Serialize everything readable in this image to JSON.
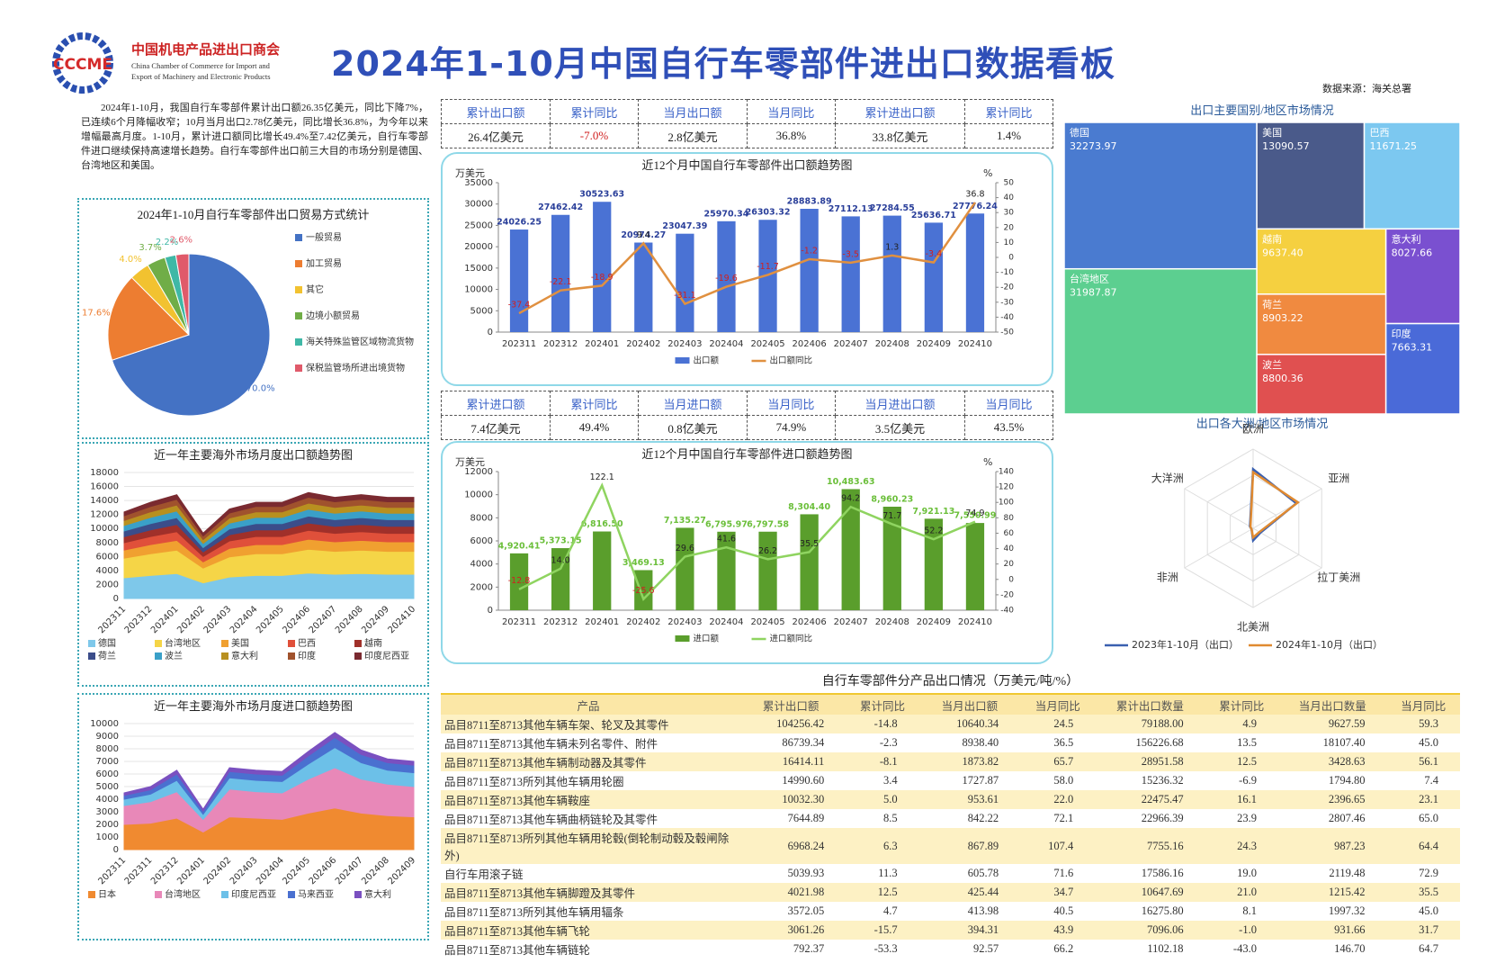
{
  "header": {
    "logo": "CCCME",
    "org_cn": "中国机电产品进出口商会",
    "org_en_1": "China Chamber of Commerce for Import and",
    "org_en_2": "Export of Machinery and Electronic Products",
    "title": "2024年1-10月中国自行车零部件进出口数据看板",
    "source": "数据来源：海关总署"
  },
  "summary": "2024年1-10月，我国自行车零部件累计出口额26.35亿美元，同比下降7%，已连续6个月降幅收窄；10月当月出口2.78亿美元，同比增长36.8%，为今年以来增幅最高月度。1-10月，累计进口额同比增长49.4%至7.42亿美元，自行车零部件进口继续保持高速增长趋势。自行车零部件出口前三大目的市场分别是德国、台湾地区和美国。",
  "kpis": [
    {
      "headers": [
        "累计出口额",
        "累计同比",
        "当月出口额",
        "当月同比",
        "累计进出口额",
        "累计同比"
      ],
      "values": [
        "26.4亿美元",
        "-7.0%",
        "2.8亿美元",
        "36.8%",
        "33.8亿美元",
        "1.4%"
      ]
    },
    {
      "headers": [
        "累计进口额",
        "累计同比",
        "当月进口额",
        "当月同比",
        "当月进出口额",
        "当月同比"
      ],
      "values": [
        "7.4亿美元",
        "49.4%",
        "0.8亿美元",
        "74.9%",
        "3.5亿美元",
        "43.5%"
      ]
    }
  ],
  "chart_data": [
    {
      "type": "pie",
      "title": "2024年1-10月自行车零部件出口贸易方式统计",
      "categories": [
        "一般贸易",
        "加工贸易",
        "其它",
        "边境小额贸易",
        "海关特殊监管区域物流货物",
        "保税监管场所进出境货物"
      ],
      "values": [
        70.0,
        17.6,
        4.0,
        3.7,
        2.2,
        2.6
      ],
      "value_labels": [
        "70.0%",
        "17.6%",
        "4.0%",
        "3.7%",
        "2.2%",
        "2.6%"
      ],
      "colors": [
        "#4472c4",
        "#ed7d31",
        "#f2c230",
        "#70ad47",
        "#3fb8a6",
        "#e05a6a"
      ]
    },
    {
      "type": "area",
      "stacked": true,
      "title": "近一年主要海外市场月度出口额趋势图",
      "categories": [
        "202311",
        "202312",
        "202401",
        "202402",
        "202403",
        "202404",
        "202405",
        "202406",
        "202407",
        "202408",
        "202409",
        "202410"
      ],
      "ylim": [
        0,
        18000
      ],
      "yticks": [
        0,
        2000,
        4000,
        6000,
        8000,
        10000,
        12000,
        14000,
        16000,
        18000
      ],
      "series": [
        {
          "name": "德国",
          "color": "#7ec8ea",
          "values": [
            2970,
            3300,
            3560,
            2240,
            3070,
            3300,
            3300,
            3630,
            3470,
            3560,
            3470,
            3470
          ]
        },
        {
          "name": "台湾地区",
          "color": "#f5d547",
          "values": [
            2790,
            3100,
            3350,
            2110,
            2880,
            3100,
            3100,
            3410,
            3260,
            3350,
            3260,
            3260
          ]
        },
        {
          "name": "美国",
          "color": "#f0a030",
          "values": [
            1170,
            1300,
            1400,
            880,
            1210,
            1300,
            1300,
            1430,
            1370,
            1400,
            1370,
            1370
          ]
        },
        {
          "name": "巴西",
          "color": "#e0503a",
          "values": [
            1040,
            1150,
            1240,
            780,
            1070,
            1150,
            1150,
            1270,
            1210,
            1240,
            1210,
            1210
          ]
        },
        {
          "name": "越南",
          "color": "#a0302a",
          "values": [
            860,
            950,
            1030,
            650,
            880,
            950,
            950,
            1050,
            1000,
            1030,
            1000,
            1000
          ]
        },
        {
          "name": "荷兰",
          "color": "#3b4d8a",
          "values": [
            810,
            900,
            970,
            610,
            840,
            900,
            900,
            990,
            950,
            970,
            950,
            950
          ]
        },
        {
          "name": "波兰",
          "color": "#3aa0c8",
          "values": [
            790,
            880,
            950,
            600,
            820,
            880,
            880,
            970,
            920,
            950,
            920,
            920
          ]
        },
        {
          "name": "意大利",
          "color": "#b89020",
          "values": [
            720,
            800,
            860,
            540,
            740,
            800,
            800,
            880,
            840,
            860,
            840,
            840
          ]
        },
        {
          "name": "印度",
          "color": "#a0522d",
          "values": [
            680,
            760,
            820,
            520,
            710,
            760,
            760,
            840,
            800,
            820,
            800,
            800
          ]
        },
        {
          "name": "印度尼西亚",
          "color": "#7a2a30",
          "values": [
            540,
            600,
            650,
            410,
            560,
            600,
            600,
            660,
            630,
            650,
            630,
            630
          ]
        }
      ]
    },
    {
      "type": "area",
      "stacked": true,
      "title": "近一年主要海外市场月度进口额趋势图",
      "categories": [
        "202311",
        "202311",
        "202312",
        "202401",
        "202402",
        "202403",
        "202404",
        "202405",
        "202406",
        "202407",
        "202408",
        "202409"
      ],
      "ylim": [
        0,
        10000
      ],
      "yticks": [
        0,
        1000,
        2000,
        3000,
        4000,
        5000,
        6000,
        7000,
        8000,
        9000,
        10000
      ],
      "series": [
        {
          "name": "日本",
          "color": "#f08a30",
          "values": [
            2000,
            2100,
            2500,
            1400,
            2600,
            2500,
            2400,
            2900,
            3300,
            2900,
            2700,
            2600
          ]
        },
        {
          "name": "台湾地区",
          "color": "#e888b8",
          "values": [
            1500,
            1700,
            2100,
            1000,
            2200,
            2100,
            2100,
            2700,
            3200,
            2700,
            2500,
            2400
          ]
        },
        {
          "name": "印度尼西亚",
          "color": "#6cc0e8",
          "values": [
            500,
            600,
            900,
            400,
            900,
            900,
            900,
            1200,
            1600,
            1300,
            1100,
            1100
          ]
        },
        {
          "name": "马来西亚",
          "color": "#4a70d0",
          "values": [
            300,
            350,
            500,
            250,
            500,
            500,
            500,
            650,
            800,
            650,
            600,
            600
          ]
        },
        {
          "name": "意大利",
          "color": "#7a50c0",
          "values": [
            200,
            250,
            300,
            150,
            300,
            300,
            300,
            350,
            400,
            350,
            300,
            300
          ]
        }
      ]
    },
    {
      "type": "combo",
      "title": "近12个月中国自行车零部件出口额趋势图",
      "ylabel": "万美元",
      "y2label": "%",
      "categories": [
        "202311",
        "202312",
        "202401",
        "202402",
        "202403",
        "202404",
        "202405",
        "202406",
        "202407",
        "202408",
        "202409",
        "202410"
      ],
      "ylim": [
        0,
        35000
      ],
      "yticks": [
        0,
        5000,
        10000,
        15000,
        20000,
        25000,
        30000,
        35000
      ],
      "y2lim": [
        -50,
        50
      ],
      "y2ticks": [
        -50,
        -40,
        -30,
        -20,
        -10,
        0,
        10,
        20,
        30,
        40,
        50
      ],
      "series": [
        {
          "name": "出口额",
          "type": "bar",
          "color": "#4a72d4",
          "values": [
            24026.25,
            27462.42,
            30523.63,
            20974.27,
            23047.39,
            25970.34,
            26303.32,
            28883.89,
            27112.13,
            27284.55,
            25636.71,
            27776.24
          ]
        },
        {
          "name": "出口额同比",
          "type": "line",
          "axis": "y2",
          "color": "#e09040",
          "values": [
            -37.4,
            -22.1,
            -18.9,
            9.4,
            -31.1,
            -19.6,
            -11.7,
            -1.2,
            -3.5,
            1.3,
            -3.4,
            36.8
          ]
        }
      ]
    },
    {
      "type": "combo",
      "title": "近12个月中国自行车零部件进口额趋势图",
      "ylabel": "万美元",
      "y2label": "%",
      "categories": [
        "202311",
        "202312",
        "202401",
        "202402",
        "202403",
        "202404",
        "202405",
        "202406",
        "202407",
        "202408",
        "202409",
        "202410"
      ],
      "ylim": [
        0,
        12000
      ],
      "yticks": [
        0,
        2000,
        4000,
        6000,
        8000,
        10000,
        12000
      ],
      "y2lim": [
        -40,
        140
      ],
      "y2ticks": [
        -40,
        -20,
        0,
        20,
        40,
        60,
        80,
        100,
        120,
        140
      ],
      "series": [
        {
          "name": "进口额",
          "type": "bar",
          "color": "#5a9e2c",
          "values": [
            4920.41,
            5373.15,
            6816.5,
            3469.13,
            7135.27,
            6795.97,
            6797.58,
            8304.4,
            10483.63,
            8960.23,
            7921.13,
            7550.99
          ],
          "value_labels": [
            "4,920.41",
            "5,373.15",
            "6,816.50",
            "3,469.13",
            "7,135.27",
            "6,795.97",
            "6,797.58",
            "8,304.40",
            "10,483.63",
            "8,960.23",
            "7,921.13",
            "7,550.99"
          ]
        },
        {
          "name": "进口额同比",
          "type": "line",
          "axis": "y2",
          "color": "#8fd460",
          "values": [
            -12.8,
            14.0,
            122.1,
            -25.6,
            29.6,
            41.6,
            26.2,
            35.5,
            94.2,
            71.7,
            52.2,
            74.9
          ],
          "value_labels": [
            "-12.8",
            "14.0",
            "122.1",
            "-25.6",
            "29.6",
            "41.6",
            "26.2",
            "35.5",
            "94.2",
            "71.7",
            "52.2",
            "74.9"
          ]
        }
      ]
    },
    {
      "type": "treemap",
      "title": "出口主要国别/地区市场情况",
      "categories": [
        "德国",
        "台湾地区",
        "美国",
        "巴西",
        "越南",
        "荷兰",
        "波兰",
        "意大利",
        "印度"
      ],
      "values": [
        32273.97,
        31987.87,
        13090.57,
        11671.25,
        9637.4,
        8903.22,
        8800.36,
        8027.66,
        7663.31
      ],
      "value_labels": [
        "32273.97",
        "31987.87",
        "13090.57",
        "11671.25",
        "9637.40",
        "8903.22",
        "8800.36",
        "8027.66",
        "7663.31"
      ],
      "colors": [
        "#4a7bd0",
        "#5ccf90",
        "#4a5a8a",
        "#7cc8f0",
        "#f5d040",
        "#f08a40",
        "#e05050",
        "#7a50d0",
        "#4a6ad8"
      ]
    },
    {
      "type": "radar",
      "title": "出口各大洲/地区市场情况",
      "categories": [
        "欧洲",
        "亚洲",
        "拉丁美洲",
        "北美洲",
        "非洲",
        "大洋洲"
      ],
      "rlim": [
        0,
        130000
      ],
      "series": [
        {
          "name": "2023年1-10月（出口）",
          "color": "#3a60b0",
          "values": [
            97000,
            82000,
            14000,
            20000,
            3000,
            6000
          ]
        },
        {
          "name": "2024年1-10月（出口）",
          "color": "#e08a30",
          "values": [
            92000,
            85000,
            12000,
            15000,
            3000,
            5000
          ]
        }
      ]
    }
  ],
  "table": {
    "title": "自行车零部件分产品出口情况（万美元/吨/%）",
    "columns": [
      "产品",
      "累计出口额",
      "累计同比",
      "当月出口额",
      "当月同比",
      "累计出口数量",
      "累计同比",
      "当月出口数量",
      "当月同比"
    ],
    "rows": [
      [
        "品目8711至8713其他车辆车架、轮叉及其零件",
        "104256.42",
        "-14.8",
        "10640.34",
        "24.5",
        "79188.00",
        "4.9",
        "9627.59",
        "59.3"
      ],
      [
        "品目8711至8713其他车辆未列名零件、附件",
        "86739.34",
        "-2.3",
        "8938.40",
        "36.5",
        "156226.68",
        "13.5",
        "18107.40",
        "45.0"
      ],
      [
        "品目8711至8713其他车辆制动器及其零件",
        "16414.11",
        "-8.1",
        "1873.82",
        "65.7",
        "28951.58",
        "12.5",
        "3428.63",
        "56.1"
      ],
      [
        "品目8711至8713所列其他车辆用轮圈",
        "14990.60",
        "3.4",
        "1727.87",
        "58.0",
        "15236.32",
        "-6.9",
        "1794.80",
        "7.4"
      ],
      [
        "品目8711至8713其他车辆鞍座",
        "10032.30",
        "5.0",
        "953.61",
        "22.0",
        "22475.47",
        "16.1",
        "2396.65",
        "23.1"
      ],
      [
        "品目8711至8713其他车辆曲柄链轮及其零件",
        "7644.89",
        "8.5",
        "842.22",
        "72.1",
        "22966.39",
        "23.9",
        "2807.46",
        "65.0"
      ],
      [
        "品目8711至8713所列其他车辆用轮毂(倒轮制动毂及毂闸除外)",
        "6968.24",
        "6.3",
        "867.89",
        "107.4",
        "7755.16",
        "24.3",
        "987.23",
        "64.4"
      ],
      [
        "自行车用滚子链",
        "5039.93",
        "11.3",
        "605.78",
        "71.6",
        "17586.16",
        "19.0",
        "2119.48",
        "72.9"
      ],
      [
        "品目8711至8713其他车辆脚蹬及其零件",
        "4021.98",
        "12.5",
        "425.44",
        "34.7",
        "10647.69",
        "21.0",
        "1215.42",
        "35.5"
      ],
      [
        "品目8711至8713所列其他车辆用辐条",
        "3572.05",
        "4.7",
        "413.98",
        "40.5",
        "16275.80",
        "8.1",
        "1997.32",
        "45.0"
      ],
      [
        "品目8711至8713其他车辆飞轮",
        "3061.26",
        "-15.7",
        "394.31",
        "43.9",
        "7096.06",
        "-1.0",
        "931.66",
        "31.7"
      ],
      [
        "品目8711至8713其他车辆链轮",
        "792.37",
        "-53.3",
        "92.57",
        "66.2",
        "1102.18",
        "-43.0",
        "146.70",
        "64.7"
      ]
    ]
  }
}
